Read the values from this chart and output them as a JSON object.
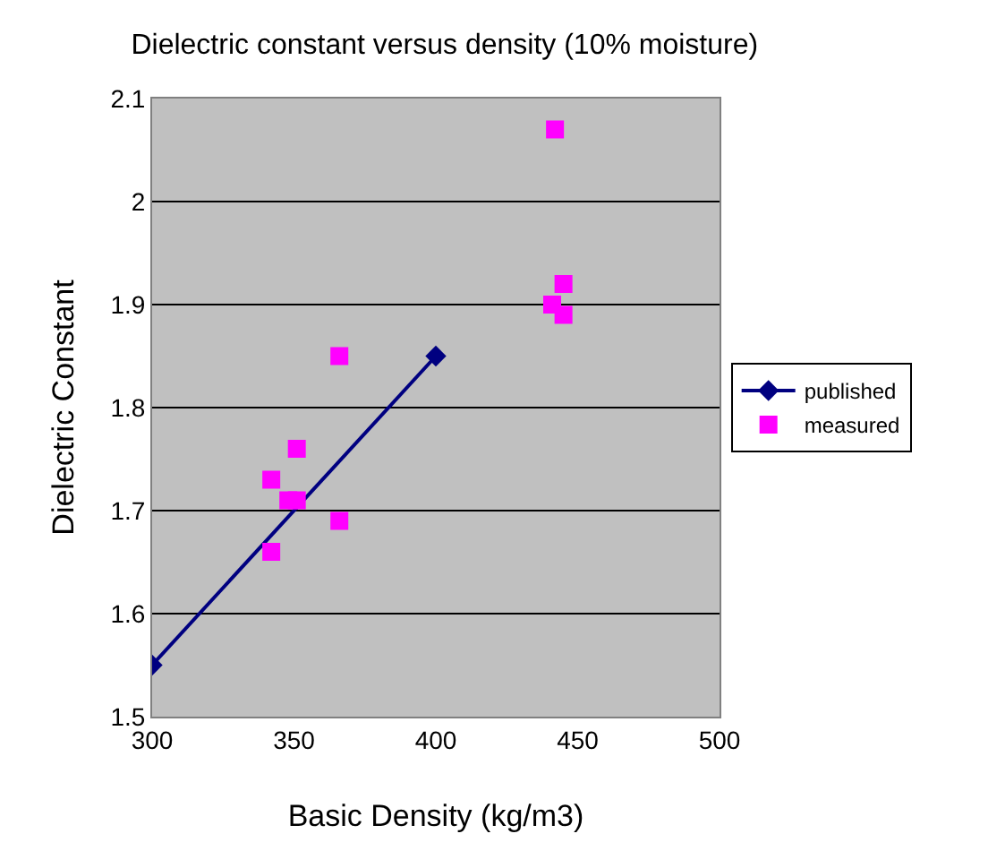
{
  "chart_data": {
    "type": "scatter",
    "title": "Dielectric constant versus density (10% moisture)",
    "xlabel": "Basic Density (kg/m3)",
    "ylabel": "Dielectric Constant",
    "xlim": [
      300,
      500
    ],
    "xticks": [
      300,
      350,
      400,
      450,
      500
    ],
    "ylim": [
      1.5,
      2.1
    ],
    "yticks": [
      1.5,
      1.6,
      1.7,
      1.8,
      1.9,
      2,
      2.1
    ],
    "grid": "y",
    "legend": "right",
    "series": [
      {
        "name": "published",
        "type": "line",
        "color": "#000080",
        "marker": "diamond",
        "x": [
          300,
          400
        ],
        "values": [
          1.55,
          1.85
        ]
      },
      {
        "name": "measured",
        "color": "#ff00ff",
        "marker": "square",
        "x": [
          342,
          342,
          351,
          348,
          351,
          366,
          366,
          442,
          441,
          445,
          445
        ],
        "values": [
          1.73,
          1.66,
          1.76,
          1.71,
          1.71,
          1.85,
          1.69,
          2.07,
          1.9,
          1.92,
          1.89
        ]
      }
    ]
  }
}
